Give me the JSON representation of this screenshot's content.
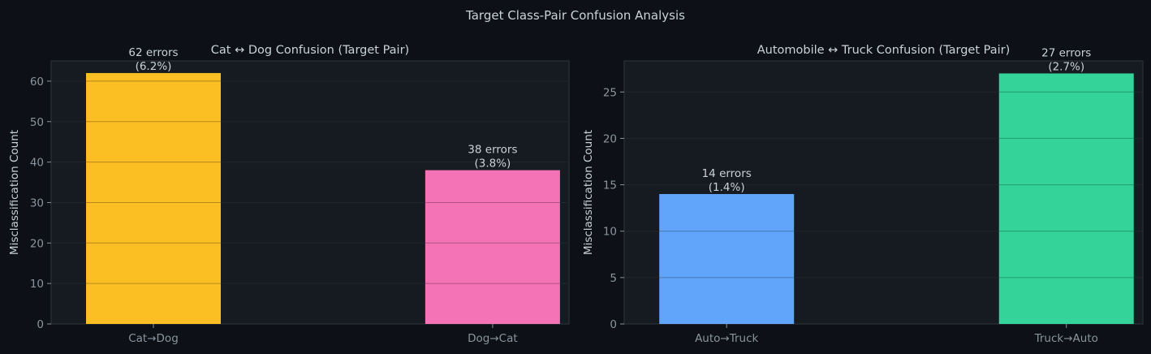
{
  "figure": {
    "title": "Target Class-Pair Confusion Analysis",
    "background": "#0d1117",
    "panel_color": "#161b22",
    "text_color": "#c9d1d9",
    "tick_color": "#8b949e",
    "grid": true
  },
  "chart_data": [
    {
      "type": "bar",
      "title": "Cat ↔ Dog Confusion (Target Pair)",
      "xlabel": "",
      "ylabel": "Misclassification Count",
      "categories": [
        "Cat→Dog",
        "Dog→Cat"
      ],
      "values": [
        62,
        38
      ],
      "colors": [
        "#fbbf24",
        "#f472b6"
      ],
      "labels": [
        {
          "count": "62 errors",
          "pct": "(6.2%)"
        },
        {
          "count": "38 errors",
          "pct": "(3.8%)"
        }
      ],
      "ylim": [
        0,
        65
      ],
      "yticks": [
        0,
        10,
        20,
        30,
        40,
        50,
        60
      ]
    },
    {
      "type": "bar",
      "title": "Automobile ↔ Truck Confusion (Target Pair)",
      "xlabel": "",
      "ylabel": "Misclassification Count",
      "categories": [
        "Auto→Truck",
        "Truck→Auto"
      ],
      "values": [
        14,
        27
      ],
      "colors": [
        "#60a5fa",
        "#34d399"
      ],
      "labels": [
        {
          "count": "14 errors",
          "pct": "(1.4%)"
        },
        {
          "count": "27 errors",
          "pct": "(2.7%)"
        }
      ],
      "ylim": [
        0,
        28.35
      ],
      "yticks": [
        0,
        5,
        10,
        15,
        20,
        25
      ]
    }
  ]
}
